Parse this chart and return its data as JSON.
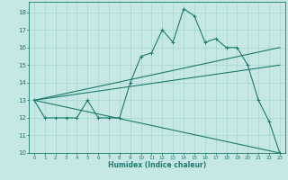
{
  "xlabel": "Humidex (Indice chaleur)",
  "bg_color": "#c5e8e5",
  "grid_color": "#a8d5d0",
  "line_color": "#1e7a6e",
  "xlim": [
    -0.5,
    23.5
  ],
  "ylim": [
    10,
    18.6
  ],
  "yticks": [
    10,
    11,
    12,
    13,
    14,
    15,
    16,
    17,
    18
  ],
  "xticks": [
    0,
    1,
    2,
    3,
    4,
    5,
    6,
    7,
    8,
    9,
    10,
    11,
    12,
    13,
    14,
    15,
    16,
    17,
    18,
    19,
    20,
    21,
    22,
    23
  ],
  "line1_x": [
    0,
    1,
    2,
    3,
    4,
    5,
    6,
    7,
    8,
    9,
    10,
    11,
    12,
    13,
    14,
    15,
    16,
    17,
    18,
    19,
    20,
    21,
    22,
    23
  ],
  "line1_y": [
    13,
    12,
    12,
    12,
    12,
    13,
    12,
    12,
    12,
    14,
    15.5,
    15.7,
    17,
    16.3,
    18.2,
    17.8,
    16.3,
    16.5,
    16,
    16,
    15,
    13,
    11.8,
    10
  ],
  "line2_x": [
    0,
    23
  ],
  "line2_y": [
    13,
    15.0
  ],
  "line3_x": [
    0,
    23
  ],
  "line3_y": [
    13,
    16.0
  ],
  "line4_x": [
    0,
    23
  ],
  "line4_y": [
    13,
    10.0
  ]
}
